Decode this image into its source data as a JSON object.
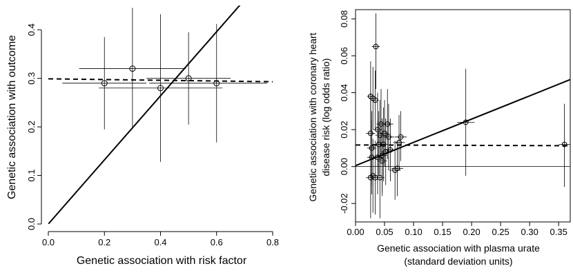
{
  "chart_data": [
    {
      "type": "scatter",
      "xlabel": "Genetic association with risk factor",
      "ylabel": "Genetic association with outcome",
      "xlim": [
        0,
        0.8
      ],
      "ylim": [
        0,
        0.45
      ],
      "xticks": [
        "0.0",
        "0.2",
        "0.4",
        "0.6",
        "0.8"
      ],
      "yticks": [
        "0.0",
        "0.1",
        "0.2",
        "0.3",
        "0.4"
      ],
      "grid": false,
      "points": [
        {
          "x": 0.2,
          "y": 0.29,
          "x_lo": 0.05,
          "x_hi": 0.35,
          "y_lo": 0.195,
          "y_hi": 0.385
        },
        {
          "x": 0.3,
          "y": 0.32,
          "x_lo": 0.11,
          "x_hi": 0.49,
          "y_lo": 0.2,
          "y_hi": 0.445
        },
        {
          "x": 0.4,
          "y": 0.28,
          "x_lo": 0.18,
          "x_hi": 0.62,
          "y_lo": 0.128,
          "y_hi": 0.432
        },
        {
          "x": 0.5,
          "y": 0.3,
          "x_lo": 0.35,
          "x_hi": 0.65,
          "y_lo": 0.205,
          "y_hi": 0.395
        },
        {
          "x": 0.6,
          "y": 0.29,
          "x_lo": 0.36,
          "x_hi": 0.78,
          "y_lo": 0.168,
          "y_hi": 0.412
        }
      ],
      "lines": [
        {
          "style": "solid",
          "intercept": 0,
          "slope": 0.66
        },
        {
          "style": "dashed",
          "intercept": 0.299,
          "slope": -0.0075
        }
      ]
    },
    {
      "type": "scatter",
      "xlabel": [
        "Genetic association with plasma urate",
        "(standard deviation units)"
      ],
      "ylabel": [
        "Genetic association with coronary heart",
        "disease risk (log odds ratio)"
      ],
      "xlim": [
        0,
        0.37
      ],
      "ylim": [
        -0.03,
        0.085
      ],
      "xticks": [
        "0.00",
        "0.05",
        "0.10",
        "0.15",
        "0.20",
        "0.25",
        "0.30",
        "0.35"
      ],
      "yticks": [
        "-0.02",
        "0.00",
        "0.02",
        "0.04",
        "0.06",
        "0.08"
      ],
      "grid": false,
      "reference_line_y": 0,
      "points": [
        {
          "x": 0.026,
          "y": 0.038,
          "x_lo": 0.02,
          "x_hi": 0.033,
          "y_lo": 0.019,
          "y_hi": 0.057
        },
        {
          "x": 0.03,
          "y": 0.037,
          "x_lo": 0.024,
          "x_hi": 0.036,
          "y_lo": 0.02,
          "y_hi": 0.054
        },
        {
          "x": 0.034,
          "y": 0.036,
          "x_lo": 0.028,
          "x_hi": 0.04,
          "y_lo": 0.02,
          "y_hi": 0.052
        },
        {
          "x": 0.035,
          "y": 0.065,
          "x_lo": 0.028,
          "x_hi": 0.042,
          "y_lo": 0.042,
          "y_hi": 0.083
        },
        {
          "x": 0.026,
          "y": 0.018,
          "x_lo": 0.018,
          "x_hi": 0.034,
          "y_lo": -0.005,
          "y_hi": 0.04
        },
        {
          "x": 0.028,
          "y": 0.01,
          "x_lo": 0.02,
          "x_hi": 0.036,
          "y_lo": -0.01,
          "y_hi": 0.03
        },
        {
          "x": 0.028,
          "y": 0.005,
          "x_lo": 0.02,
          "x_hi": 0.036,
          "y_lo": -0.015,
          "y_hi": 0.025
        },
        {
          "x": 0.026,
          "y": -0.006,
          "x_lo": 0.018,
          "x_hi": 0.034,
          "y_lo": -0.028,
          "y_hi": 0.016
        },
        {
          "x": 0.03,
          "y": -0.005,
          "x_lo": 0.022,
          "x_hi": 0.038,
          "y_lo": -0.025,
          "y_hi": 0.015
        },
        {
          "x": 0.034,
          "y": -0.006,
          "x_lo": 0.026,
          "x_hi": 0.042,
          "y_lo": -0.026,
          "y_hi": 0.014
        },
        {
          "x": 0.038,
          "y": 0.02,
          "x_lo": 0.03,
          "x_hi": 0.046,
          "y_lo": 0.0,
          "y_hi": 0.04
        },
        {
          "x": 0.038,
          "y": 0.005,
          "x_lo": 0.03,
          "x_hi": 0.046,
          "y_lo": -0.015,
          "y_hi": 0.025
        },
        {
          "x": 0.04,
          "y": 0.012,
          "x_lo": 0.03,
          "x_hi": 0.05,
          "y_lo": -0.005,
          "y_hi": 0.03
        },
        {
          "x": 0.042,
          "y": 0.017,
          "x_lo": 0.034,
          "x_hi": 0.05,
          "y_lo": -0.004,
          "y_hi": 0.036
        },
        {
          "x": 0.042,
          "y": -0.006,
          "x_lo": 0.034,
          "x_hi": 0.05,
          "y_lo": -0.028,
          "y_hi": 0.016
        },
        {
          "x": 0.044,
          "y": 0.023,
          "x_lo": 0.036,
          "x_hi": 0.052,
          "y_lo": 0.004,
          "y_hi": 0.042
        },
        {
          "x": 0.046,
          "y": 0.006,
          "x_lo": 0.038,
          "x_hi": 0.054,
          "y_lo": -0.014,
          "y_hi": 0.026
        },
        {
          "x": 0.046,
          "y": 0.003,
          "x_lo": 0.038,
          "x_hi": 0.054,
          "y_lo": -0.016,
          "y_hi": 0.022
        },
        {
          "x": 0.048,
          "y": 0.012,
          "x_lo": 0.04,
          "x_hi": 0.056,
          "y_lo": -0.008,
          "y_hi": 0.032
        },
        {
          "x": 0.05,
          "y": 0.018,
          "x_lo": 0.042,
          "x_hi": 0.058,
          "y_lo": 0.0,
          "y_hi": 0.036
        },
        {
          "x": 0.052,
          "y": 0.008,
          "x_lo": 0.044,
          "x_hi": 0.06,
          "y_lo": -0.01,
          "y_hi": 0.026
        },
        {
          "x": 0.055,
          "y": 0.023,
          "x_lo": 0.045,
          "x_hi": 0.065,
          "y_lo": 0.004,
          "y_hi": 0.042
        },
        {
          "x": 0.057,
          "y": 0.016,
          "x_lo": 0.047,
          "x_hi": 0.067,
          "y_lo": -0.002,
          "y_hi": 0.034
        },
        {
          "x": 0.06,
          "y": 0.009,
          "x_lo": 0.05,
          "x_hi": 0.07,
          "y_lo": -0.008,
          "y_hi": 0.026
        },
        {
          "x": 0.068,
          "y": -0.002,
          "x_lo": 0.058,
          "x_hi": 0.078,
          "y_lo": -0.018,
          "y_hi": 0.014
        },
        {
          "x": 0.072,
          "y": -0.001,
          "x_lo": 0.062,
          "x_hi": 0.082,
          "y_lo": -0.016,
          "y_hi": 0.014
        },
        {
          "x": 0.075,
          "y": 0.013,
          "x_lo": 0.065,
          "x_hi": 0.085,
          "y_lo": -0.002,
          "y_hi": 0.028
        },
        {
          "x": 0.078,
          "y": 0.016,
          "x_lo": 0.068,
          "x_hi": 0.088,
          "y_lo": 0.003,
          "y_hi": 0.03
        },
        {
          "x": 0.19,
          "y": 0.024,
          "x_lo": 0.175,
          "x_hi": 0.205,
          "y_lo": -0.005,
          "y_hi": 0.053
        },
        {
          "x": 0.36,
          "y": 0.012,
          "x_lo": 0.35,
          "x_hi": 0.37,
          "y_lo": -0.011,
          "y_hi": 0.034
        }
      ],
      "lines": [
        {
          "style": "solid",
          "intercept": 0.0005,
          "slope": 0.126
        },
        {
          "style": "dashed",
          "intercept": 0.0117,
          "slope": -0.0011
        }
      ]
    }
  ]
}
